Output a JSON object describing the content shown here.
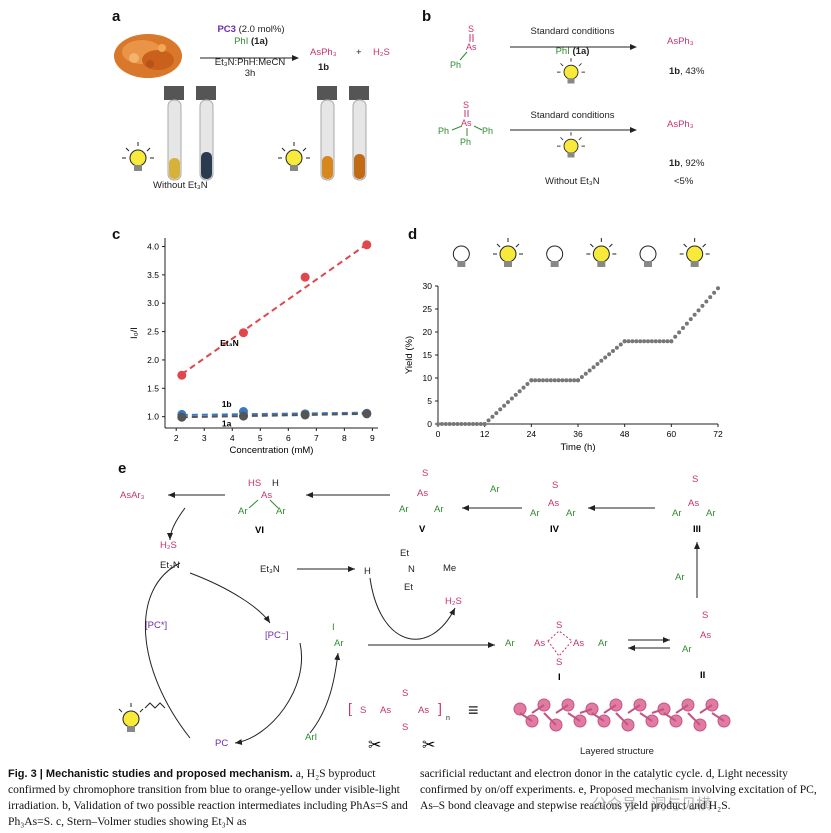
{
  "panels": {
    "a": "a",
    "b": "b",
    "c": "c",
    "d": "d",
    "e": "e"
  },
  "panel_a": {
    "pc3": "PC3",
    "pc3_loading": "(2.0 mol%)",
    "phi": "PhI",
    "phi_label": "(1a)",
    "solvent": "Et₃N:PhH:MeCN",
    "time": "3h",
    "product": "AsPh₃",
    "product_label": "1b",
    "plus": "+",
    "byproduct": "H₂S",
    "without": "Without Et₃N"
  },
  "panel_b": {
    "cond1_top": "Standard conditions",
    "cond1_bottom": "PhI",
    "cond1_bottom_label": "(1a)",
    "product1": "AsPh₃",
    "yield1_label": "1b",
    "yield1": ", 43%",
    "cond2_top": "Standard conditions",
    "product2": "AsPh₃",
    "yield2_label": "1b",
    "yield2": ", 92%",
    "without": "Without Et₃N",
    "yield3": "<5%",
    "s": "S",
    "as": "As",
    "ph": "Ph"
  },
  "chart_data": [
    {
      "type": "scatter",
      "panel": "c",
      "xlabel": "Concentration (mM)",
      "ylabel": "I₀/I",
      "xlim": [
        1.6,
        9.2
      ],
      "ylim": [
        0.8,
        4.15
      ],
      "xticks": [
        2,
        3,
        4,
        5,
        6,
        7,
        8,
        9
      ],
      "yticks": [
        1.0,
        1.5,
        2.0,
        2.5,
        3.0,
        3.5,
        4.0
      ],
      "series": [
        {
          "name": "Et₃N",
          "color": "#e0464b",
          "x": [
            2.2,
            4.4,
            6.6,
            8.8
          ],
          "y": [
            1.73,
            2.48,
            3.46,
            4.03
          ],
          "fit": [
            1.75,
            4.04
          ]
        },
        {
          "name": "1b",
          "color": "#3a78c0",
          "x": [
            2.2,
            4.4,
            6.6,
            8.8
          ],
          "y": [
            1.04,
            1.09,
            1.05,
            1.06
          ],
          "fit": [
            1.03,
            1.07
          ]
        },
        {
          "name": "1a",
          "color": "#555555",
          "x": [
            2.2,
            4.4,
            6.6,
            8.8
          ],
          "y": [
            0.99,
            1.01,
            1.03,
            1.05
          ],
          "fit": [
            0.99,
            1.05
          ]
        }
      ],
      "grid": false
    },
    {
      "type": "scatter",
      "panel": "d",
      "xlabel": "Time (h)",
      "ylabel": "Yield (%)",
      "xlim": [
        0,
        72
      ],
      "ylim": [
        0,
        30
      ],
      "xticks": [
        0,
        12,
        24,
        36,
        48,
        60,
        72
      ],
      "yticks": [
        0,
        5,
        10,
        15,
        20,
        25,
        30
      ],
      "light_pattern": [
        "off",
        "on",
        "off",
        "on",
        "off",
        "on"
      ],
      "segments": [
        {
          "x0": 0,
          "x1": 12,
          "y0": 0,
          "y1": 0
        },
        {
          "x0": 12,
          "x1": 24,
          "y0": 0,
          "y1": 9.5
        },
        {
          "x0": 24,
          "x1": 36,
          "y0": 9.5,
          "y1": 9.5
        },
        {
          "x0": 36,
          "x1": 48,
          "y0": 9.5,
          "y1": 18
        },
        {
          "x0": 48,
          "x1": 60,
          "y0": 18,
          "y1": 18
        },
        {
          "x0": 60,
          "x1": 72,
          "y0": 18,
          "y1": 29.5
        }
      ],
      "color": "#777777",
      "grid": false
    }
  ],
  "panel_e": {
    "asar3": "AsAr₃",
    "h2s": "H₂S",
    "et3n": "Et₃N",
    "et3n_plus": "Et₃N",
    "h_radical": "H",
    "et": "Et",
    "me": "Me",
    "n": "N",
    "h2s_2": "H₂S",
    "pc_star": "[PC*]",
    "pc_minus": "[PC⁻]",
    "pc": "PC",
    "ari": "ArI",
    "i_minus": "I",
    "ar_rad": "Ar",
    "ar_rad2": "Ar",
    "ar_rad3": "Ar",
    "ar": "Ar",
    "as": "As",
    "s": "S",
    "hs": "HS",
    "h": "H",
    "vi": "VI",
    "v": "V",
    "iv": "IV",
    "iii": "III",
    "ii": "II",
    "i": "I",
    "layered": "Layered structure",
    "n_sub": "n",
    "equiv": "≡"
  },
  "caption": {
    "col1_bold": "Fig. 3 | Mechanistic studies and proposed mechanism.",
    "col1_text": " a, H₂S byproduct confirmed by chromophore transition from blue to orange-yellow under visible-light irradiation. b, Validation of two possible reaction intermediates including PhAs=S and Ph₃As=S. c, Stern–Volmer studies showing Et₃N as",
    "col2_text": "sacrificial reductant and electron donor in the catalytic cycle. d, Light necessity confirmed by on/off experiments. e, Proposed mechanism involving excitation of PC, As–S bond cleavage and stepwise reactions yield product and H₂S.",
    "watermark": "公众号 · 洞与见横"
  }
}
